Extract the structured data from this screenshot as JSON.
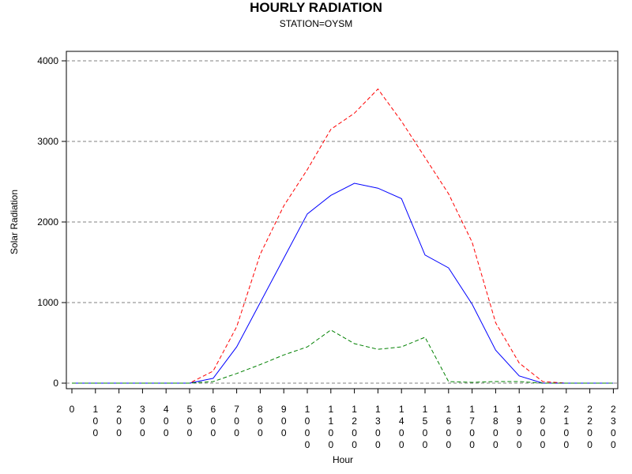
{
  "chart_data": {
    "type": "line",
    "title": "HOURLY RADIATION",
    "subtitle": "STATION=OYSM",
    "xlabel": "Hour",
    "ylabel": "Solar Radiation",
    "ylim": [
      0,
      4000
    ],
    "yticks": [
      0,
      1000,
      2000,
      3000,
      4000
    ],
    "grid": "horizontal dashed",
    "x": [
      0,
      100,
      200,
      300,
      400,
      500,
      600,
      700,
      800,
      900,
      1000,
      1100,
      1200,
      1300,
      1400,
      1500,
      1600,
      1700,
      1800,
      1900,
      2000,
      2100,
      2200,
      2300
    ],
    "xticks": [
      "0",
      "100",
      "200",
      "300",
      "400",
      "500",
      "600",
      "700",
      "800",
      "900",
      "1000",
      "1100",
      "1200",
      "1300",
      "1400",
      "1500",
      "1600",
      "1700",
      "1800",
      "1900",
      "2000",
      "2100",
      "2200",
      "2300"
    ],
    "series": [
      {
        "color": "#ff0000",
        "style": "dashed",
        "values": [
          0,
          0,
          0,
          0,
          0,
          0,
          150,
          700,
          1600,
          2200,
          2650,
          3150,
          3350,
          3650,
          3250,
          2800,
          2350,
          1750,
          750,
          250,
          20,
          0,
          0,
          0
        ]
      },
      {
        "color": "#0000ff",
        "style": "solid",
        "values": [
          0,
          0,
          0,
          0,
          0,
          0,
          60,
          450,
          1000,
          1550,
          2100,
          2330,
          2480,
          2420,
          2290,
          1590,
          1430,
          980,
          410,
          90,
          0,
          0,
          0,
          0
        ]
      },
      {
        "color": "#008000",
        "style": "dashed",
        "values": [
          0,
          0,
          0,
          0,
          0,
          0,
          20,
          120,
          230,
          350,
          450,
          660,
          490,
          420,
          450,
          570,
          20,
          10,
          20,
          20,
          0,
          0,
          0,
          0
        ]
      }
    ]
  }
}
